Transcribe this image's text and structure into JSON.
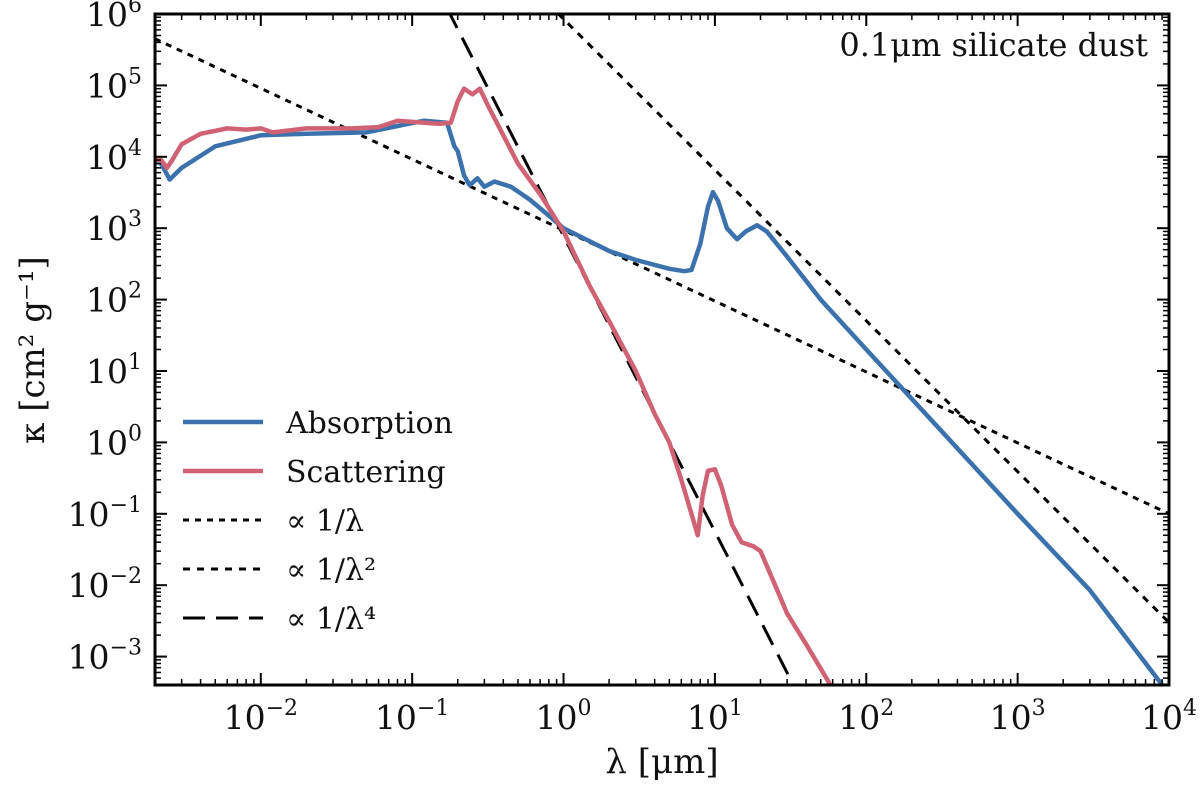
{
  "chart_data": {
    "type": "line",
    "title": "",
    "annotation": "0.1μm silicate dust",
    "xlabel": "λ [μm]",
    "ylabel": "κ [cm² g⁻¹]",
    "xscale": "log",
    "yscale": "log",
    "xlim": [
      0.002,
      10000
    ],
    "ylim": [
      0.0004,
      1000000
    ],
    "x_ticks": [
      {
        "base": "10",
        "exp": "−2",
        "value": 0.01
      },
      {
        "base": "10",
        "exp": "−1",
        "value": 0.1
      },
      {
        "base": "10",
        "exp": "0",
        "value": 1
      },
      {
        "base": "10",
        "exp": "1",
        "value": 10
      },
      {
        "base": "10",
        "exp": "2",
        "value": 100
      },
      {
        "base": "10",
        "exp": "3",
        "value": 1000
      },
      {
        "base": "10",
        "exp": "4",
        "value": 10000
      }
    ],
    "y_ticks": [
      {
        "base": "10",
        "exp": "−3",
        "value": 0.001
      },
      {
        "base": "10",
        "exp": "−2",
        "value": 0.01
      },
      {
        "base": "10",
        "exp": "−1",
        "value": 0.1
      },
      {
        "base": "10",
        "exp": "0",
        "value": 1
      },
      {
        "base": "10",
        "exp": "1",
        "value": 10
      },
      {
        "base": "10",
        "exp": "2",
        "value": 100
      },
      {
        "base": "10",
        "exp": "3",
        "value": 1000
      },
      {
        "base": "10",
        "exp": "4",
        "value": 10000
      },
      {
        "base": "10",
        "exp": "5",
        "value": 100000
      },
      {
        "base": "10",
        "exp": "6",
        "value": 1000000
      }
    ],
    "legend_position": "lower-left",
    "series": [
      {
        "name": "Absorption",
        "color": "#3b72ad",
        "style": "solid",
        "x": [
          0.002,
          0.0022,
          0.0025,
          0.003,
          0.005,
          0.01,
          0.02,
          0.05,
          0.08,
          0.12,
          0.17,
          0.19,
          0.2,
          0.22,
          0.24,
          0.27,
          0.3,
          0.35,
          0.45,
          0.6,
          0.8,
          1,
          1.5,
          2,
          3,
          5,
          6.3,
          7,
          8,
          9,
          9.7,
          10.5,
          12,
          14,
          16,
          19,
          22,
          30,
          50,
          100,
          300,
          1000,
          3000,
          10000
        ],
        "y": [
          9000,
          8000,
          4800,
          7000,
          14000,
          20000,
          21000,
          22000,
          27000,
          32000,
          30000,
          14000,
          12000,
          5500,
          4000,
          5000,
          3800,
          4500,
          3800,
          2500,
          1500,
          1000,
          650,
          480,
          360,
          270,
          250,
          260,
          600,
          2000,
          3200,
          2400,
          1000,
          700,
          900,
          1100,
          900,
          400,
          100,
          20,
          1.6,
          0.1,
          0.0085,
          0.0003
        ]
      },
      {
        "name": "Scattering",
        "color": "#d06273",
        "style": "solid",
        "x": [
          0.002,
          0.0022,
          0.0024,
          0.0026,
          0.003,
          0.004,
          0.006,
          0.008,
          0.01,
          0.012,
          0.02,
          0.04,
          0.06,
          0.08,
          0.12,
          0.15,
          0.18,
          0.2,
          0.22,
          0.25,
          0.28,
          0.32,
          0.4,
          0.5,
          0.7,
          1,
          1.5,
          2,
          3,
          4,
          5,
          6,
          7,
          7.7,
          8.3,
          9,
          10,
          11,
          13,
          15,
          18,
          20,
          25,
          30,
          40,
          58
        ],
        "y": [
          9000,
          9000,
          7000,
          9000,
          15000,
          21000,
          25000,
          24000,
          25000,
          22000,
          25000,
          25000,
          26000,
          32000,
          30000,
          29000,
          30000,
          60000,
          90000,
          75000,
          90000,
          50000,
          20000,
          8000,
          3000,
          900,
          150,
          50,
          10,
          2.5,
          1,
          0.3,
          0.1,
          0.05,
          0.18,
          0.4,
          0.42,
          0.25,
          0.07,
          0.04,
          0.035,
          0.03,
          0.01,
          0.004,
          0.0015,
          0.0004
        ]
      },
      {
        "name": "∝ 1/λ",
        "color": "#000000",
        "style": "dotted-fine",
        "x": [
          0.002,
          10000
        ],
        "y": [
          450000,
          0.1
        ]
      },
      {
        "name": "∝ 1/λ²",
        "color": "#000000",
        "style": "dotted",
        "x": [
          0.79,
          10000
        ],
        "y": [
          1400000,
          0.003
        ]
      },
      {
        "name": "∝ 1/λ⁴",
        "color": "#000000",
        "style": "dashed",
        "x": [
          0.17,
          33
        ],
        "y": [
          1200000,
          0.0004
        ]
      }
    ],
    "legend": [
      {
        "label": "Absorption",
        "color": "#3b72ad",
        "style": "solid"
      },
      {
        "label": "Scattering",
        "color": "#d06273",
        "style": "solid"
      },
      {
        "label": "∝ 1/λ",
        "color": "#000000",
        "style": "dotted-fine"
      },
      {
        "label": "∝ 1/λ²",
        "color": "#000000",
        "style": "dotted"
      },
      {
        "label": "∝ 1/λ⁴",
        "color": "#000000",
        "style": "dashed"
      }
    ]
  }
}
